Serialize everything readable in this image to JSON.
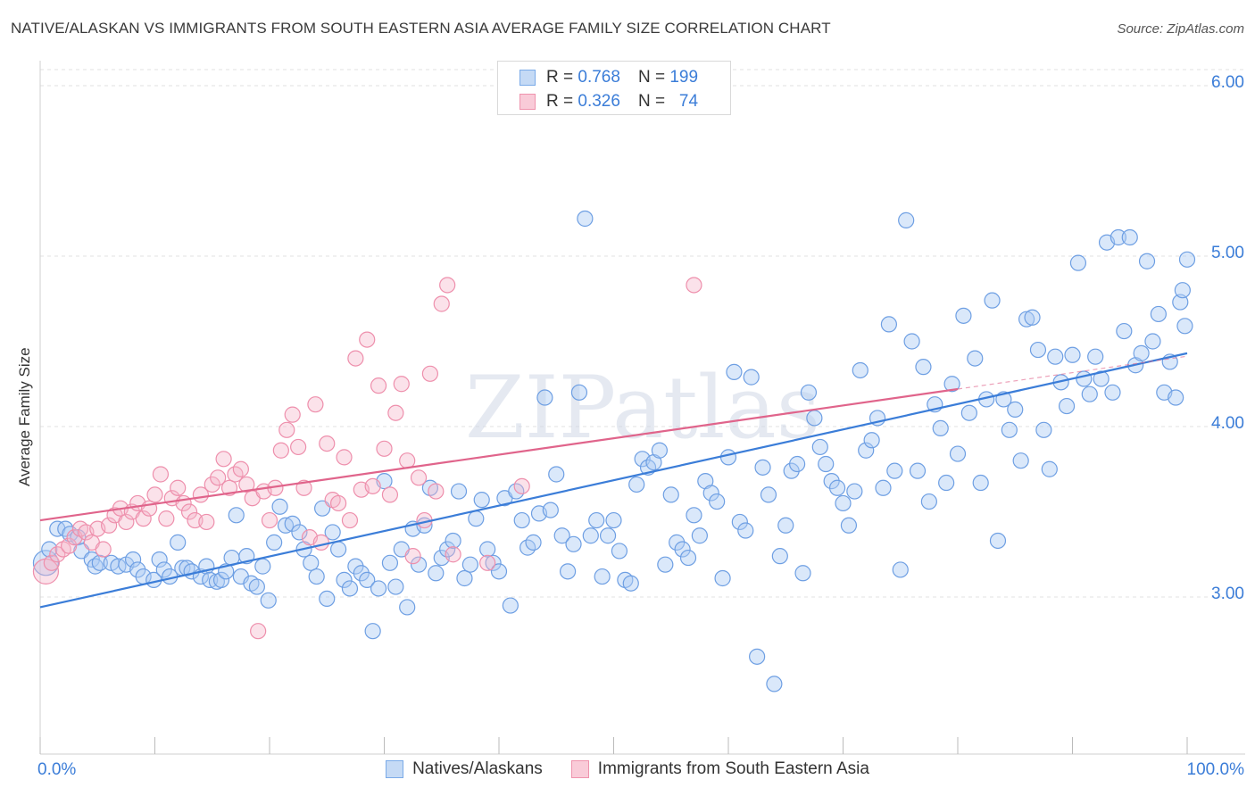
{
  "title": "NATIVE/ALASKAN VS IMMIGRANTS FROM SOUTH EASTERN ASIA AVERAGE FAMILY SIZE CORRELATION CHART",
  "source": "Source: ZipAtlas.com",
  "watermark": "ZIPatlas",
  "legend_stats": [
    {
      "r_label": "R =",
      "r_value": "0.768",
      "n_label": "N =",
      "n_value": "199",
      "color": "#7aaae8",
      "fill": "#c5daf5"
    },
    {
      "r_label": "R =",
      "r_value": "0.326",
      "n_label": "N =",
      "n_value": "74",
      "color": "#ef93ad",
      "fill": "#f9cbd8"
    }
  ],
  "chart_data": {
    "type": "scatter",
    "title": "NATIVE/ALASKAN VS IMMIGRANTS FROM SOUTH EASTERN ASIA AVERAGE FAMILY SIZE CORRELATION CHART",
    "xlabel": "",
    "ylabel": "Average Family Size",
    "xlim": [
      0,
      100
    ],
    "ylim": [
      2.1,
      6.1
    ],
    "x_tick_labels": [
      "0.0%",
      "100.0%"
    ],
    "y_ticks": [
      3.0,
      4.0,
      5.0,
      6.0
    ],
    "y_tick_labels": [
      "3.00",
      "4.00",
      "5.00",
      "6.00"
    ],
    "grid": true,
    "legend_position": "bottom",
    "series": [
      {
        "name": "Natives/Alaskans",
        "color": "#3b7dd8",
        "trend": {
          "x": [
            0,
            100
          ],
          "y": [
            2.94,
            4.43
          ]
        },
        "points": [
          [
            0.5,
            3.2
          ],
          [
            0.8,
            3.28
          ],
          [
            1.5,
            3.4
          ],
          [
            2.2,
            3.4
          ],
          [
            2.6,
            3.37
          ],
          [
            3.3,
            3.35
          ],
          [
            3.6,
            3.27
          ],
          [
            4.5,
            3.22
          ],
          [
            4.8,
            3.18
          ],
          [
            5.2,
            3.2
          ],
          [
            6.2,
            3.2
          ],
          [
            6.8,
            3.18
          ],
          [
            7.5,
            3.19
          ],
          [
            8.1,
            3.22
          ],
          [
            8.5,
            3.16
          ],
          [
            9.0,
            3.12
          ],
          [
            9.9,
            3.1
          ],
          [
            10.4,
            3.22
          ],
          [
            10.8,
            3.16
          ],
          [
            11.3,
            3.12
          ],
          [
            12.0,
            3.32
          ],
          [
            12.4,
            3.17
          ],
          [
            12.8,
            3.17
          ],
          [
            13.2,
            3.15
          ],
          [
            14.0,
            3.12
          ],
          [
            14.5,
            3.18
          ],
          [
            14.8,
            3.1
          ],
          [
            15.4,
            3.09
          ],
          [
            15.8,
            3.1
          ],
          [
            16.2,
            3.15
          ],
          [
            16.7,
            3.23
          ],
          [
            17.1,
            3.48
          ],
          [
            17.5,
            3.12
          ],
          [
            18.0,
            3.24
          ],
          [
            18.4,
            3.08
          ],
          [
            18.9,
            3.06
          ],
          [
            19.4,
            3.18
          ],
          [
            19.9,
            2.98
          ],
          [
            20.4,
            3.32
          ],
          [
            20.9,
            3.53
          ],
          [
            21.4,
            3.42
          ],
          [
            22.0,
            3.43
          ],
          [
            22.6,
            3.38
          ],
          [
            23.0,
            3.28
          ],
          [
            23.6,
            3.2
          ],
          [
            24.1,
            3.12
          ],
          [
            24.6,
            3.52
          ],
          [
            25.0,
            2.99
          ],
          [
            25.5,
            3.38
          ],
          [
            26.0,
            3.28
          ],
          [
            26.5,
            3.1
          ],
          [
            27.0,
            3.05
          ],
          [
            27.5,
            3.18
          ],
          [
            28.0,
            3.14
          ],
          [
            28.5,
            3.1
          ],
          [
            29.0,
            2.8
          ],
          [
            29.5,
            3.05
          ],
          [
            30.0,
            3.68
          ],
          [
            30.5,
            3.2
          ],
          [
            31.0,
            3.06
          ],
          [
            31.5,
            3.28
          ],
          [
            32.0,
            2.94
          ],
          [
            32.5,
            3.4
          ],
          [
            33.0,
            3.19
          ],
          [
            33.5,
            3.42
          ],
          [
            34.0,
            3.64
          ],
          [
            34.5,
            3.14
          ],
          [
            35.0,
            3.23
          ],
          [
            35.5,
            3.28
          ],
          [
            36.0,
            3.33
          ],
          [
            36.5,
            3.62
          ],
          [
            37.0,
            3.11
          ],
          [
            37.5,
            3.19
          ],
          [
            38.0,
            3.46
          ],
          [
            38.5,
            3.57
          ],
          [
            39.0,
            3.28
          ],
          [
            39.5,
            3.2
          ],
          [
            40.0,
            3.15
          ],
          [
            40.5,
            3.58
          ],
          [
            41.0,
            2.95
          ],
          [
            41.5,
            3.62
          ],
          [
            42.0,
            3.45
          ],
          [
            42.5,
            3.29
          ],
          [
            43.0,
            3.32
          ],
          [
            43.5,
            3.49
          ],
          [
            44.0,
            4.17
          ],
          [
            44.5,
            3.51
          ],
          [
            45.0,
            3.72
          ],
          [
            45.5,
            3.36
          ],
          [
            46.0,
            3.15
          ],
          [
            46.5,
            3.31
          ],
          [
            47.0,
            4.2
          ],
          [
            47.5,
            5.22
          ],
          [
            48.0,
            3.36
          ],
          [
            48.5,
            3.45
          ],
          [
            49.0,
            3.12
          ],
          [
            49.5,
            3.36
          ],
          [
            50.0,
            3.45
          ],
          [
            50.5,
            3.27
          ],
          [
            51.0,
            3.1
          ],
          [
            51.5,
            3.08
          ],
          [
            52.0,
            3.66
          ],
          [
            52.5,
            3.81
          ],
          [
            53.0,
            3.76
          ],
          [
            53.5,
            3.79
          ],
          [
            54.0,
            3.86
          ],
          [
            54.5,
            3.19
          ],
          [
            55.0,
            3.6
          ],
          [
            55.5,
            3.32
          ],
          [
            56.0,
            3.28
          ],
          [
            56.5,
            3.23
          ],
          [
            57.0,
            3.48
          ],
          [
            57.5,
            3.36
          ],
          [
            58.0,
            3.68
          ],
          [
            58.5,
            3.61
          ],
          [
            59.0,
            3.56
          ],
          [
            59.5,
            3.11
          ],
          [
            60.0,
            3.82
          ],
          [
            60.5,
            4.32
          ],
          [
            61.0,
            3.44
          ],
          [
            61.5,
            3.39
          ],
          [
            62.0,
            4.29
          ],
          [
            62.5,
            2.65
          ],
          [
            63.0,
            3.76
          ],
          [
            63.5,
            3.6
          ],
          [
            64.0,
            2.49
          ],
          [
            64.5,
            3.24
          ],
          [
            65.0,
            3.42
          ],
          [
            65.5,
            3.74
          ],
          [
            66.0,
            3.78
          ],
          [
            66.5,
            3.14
          ],
          [
            67.0,
            4.2
          ],
          [
            67.5,
            4.05
          ],
          [
            68.0,
            3.88
          ],
          [
            68.5,
            3.78
          ],
          [
            69.0,
            3.68
          ],
          [
            69.5,
            3.64
          ],
          [
            70.0,
            3.55
          ],
          [
            70.5,
            3.42
          ],
          [
            71.0,
            3.62
          ],
          [
            71.5,
            4.33
          ],
          [
            72.0,
            3.86
          ],
          [
            72.5,
            3.92
          ],
          [
            73.0,
            4.05
          ],
          [
            73.5,
            3.64
          ],
          [
            74.0,
            4.6
          ],
          [
            74.5,
            3.74
          ],
          [
            75.0,
            3.16
          ],
          [
            75.5,
            5.21
          ],
          [
            76.0,
            4.5
          ],
          [
            76.5,
            3.74
          ],
          [
            77.0,
            4.35
          ],
          [
            77.5,
            3.56
          ],
          [
            78.0,
            4.13
          ],
          [
            78.5,
            3.99
          ],
          [
            79.0,
            3.67
          ],
          [
            79.5,
            4.25
          ],
          [
            80.0,
            3.84
          ],
          [
            80.5,
            4.65
          ],
          [
            81.0,
            4.08
          ],
          [
            81.5,
            4.4
          ],
          [
            82.0,
            3.67
          ],
          [
            82.5,
            4.16
          ],
          [
            83.0,
            4.74
          ],
          [
            83.5,
            3.33
          ],
          [
            84.0,
            4.16
          ],
          [
            84.5,
            3.98
          ],
          [
            85.0,
            4.1
          ],
          [
            85.5,
            3.8
          ],
          [
            86.0,
            4.63
          ],
          [
            86.5,
            4.64
          ],
          [
            87.0,
            4.45
          ],
          [
            87.5,
            3.98
          ],
          [
            88.0,
            3.75
          ],
          [
            88.5,
            4.41
          ],
          [
            89.0,
            4.26
          ],
          [
            89.5,
            4.12
          ],
          [
            90.0,
            4.42
          ],
          [
            90.5,
            4.96
          ],
          [
            91.0,
            4.28
          ],
          [
            91.5,
            4.19
          ],
          [
            92.0,
            4.41
          ],
          [
            92.5,
            4.28
          ],
          [
            93.0,
            5.08
          ],
          [
            93.5,
            4.2
          ],
          [
            94.0,
            5.11
          ],
          [
            94.5,
            4.56
          ],
          [
            95.0,
            5.11
          ],
          [
            95.5,
            4.36
          ],
          [
            96.0,
            4.43
          ],
          [
            96.5,
            4.97
          ],
          [
            97.0,
            4.5
          ],
          [
            97.5,
            4.66
          ],
          [
            98.0,
            4.2
          ],
          [
            98.5,
            4.38
          ],
          [
            99.0,
            4.17
          ],
          [
            99.4,
            4.73
          ],
          [
            99.6,
            4.8
          ],
          [
            99.8,
            4.59
          ],
          [
            100.0,
            4.98
          ]
        ]
      },
      {
        "name": "Immigrants from South Eastern Asia",
        "color": "#e0648b",
        "trend": {
          "x": [
            0,
            80
          ],
          "y": [
            3.45,
            4.22
          ]
        },
        "points": [
          [
            0.5,
            3.15
          ],
          [
            1.0,
            3.2
          ],
          [
            1.5,
            3.25
          ],
          [
            2.0,
            3.28
          ],
          [
            2.5,
            3.3
          ],
          [
            3.0,
            3.35
          ],
          [
            3.5,
            3.4
          ],
          [
            4.0,
            3.38
          ],
          [
            4.5,
            3.32
          ],
          [
            5.0,
            3.4
          ],
          [
            5.5,
            3.28
          ],
          [
            6.0,
            3.42
          ],
          [
            6.5,
            3.48
          ],
          [
            7.0,
            3.52
          ],
          [
            7.5,
            3.44
          ],
          [
            8.0,
            3.5
          ],
          [
            8.5,
            3.55
          ],
          [
            9.0,
            3.46
          ],
          [
            9.5,
            3.52
          ],
          [
            10.0,
            3.6
          ],
          [
            10.5,
            3.72
          ],
          [
            11.0,
            3.46
          ],
          [
            11.5,
            3.58
          ],
          [
            12.0,
            3.64
          ],
          [
            12.5,
            3.55
          ],
          [
            13.0,
            3.5
          ],
          [
            13.5,
            3.45
          ],
          [
            14.0,
            3.6
          ],
          [
            14.5,
            3.44
          ],
          [
            15.0,
            3.66
          ],
          [
            15.5,
            3.7
          ],
          [
            16.0,
            3.81
          ],
          [
            16.5,
            3.64
          ],
          [
            17.0,
            3.72
          ],
          [
            17.5,
            3.75
          ],
          [
            18.0,
            3.66
          ],
          [
            18.5,
            3.58
          ],
          [
            19.0,
            2.8
          ],
          [
            19.5,
            3.62
          ],
          [
            20.0,
            3.45
          ],
          [
            20.5,
            3.64
          ],
          [
            21.0,
            3.86
          ],
          [
            21.5,
            3.98
          ],
          [
            22.0,
            4.07
          ],
          [
            22.5,
            3.88
          ],
          [
            23.0,
            3.64
          ],
          [
            23.5,
            3.35
          ],
          [
            24.0,
            4.13
          ],
          [
            24.5,
            3.32
          ],
          [
            25.0,
            3.9
          ],
          [
            25.5,
            3.57
          ],
          [
            26.0,
            3.55
          ],
          [
            26.5,
            3.82
          ],
          [
            27.0,
            3.45
          ],
          [
            27.5,
            4.4
          ],
          [
            28.0,
            3.63
          ],
          [
            28.5,
            4.51
          ],
          [
            29.0,
            3.65
          ],
          [
            29.5,
            4.24
          ],
          [
            30.0,
            3.87
          ],
          [
            30.5,
            3.6
          ],
          [
            31.0,
            4.08
          ],
          [
            31.5,
            4.25
          ],
          [
            32.0,
            3.8
          ],
          [
            32.5,
            3.24
          ],
          [
            33.0,
            3.7
          ],
          [
            33.5,
            3.45
          ],
          [
            34.0,
            4.31
          ],
          [
            34.5,
            3.62
          ],
          [
            35.0,
            4.72
          ],
          [
            35.5,
            4.83
          ],
          [
            36.0,
            3.25
          ],
          [
            39.0,
            3.2
          ],
          [
            42.0,
            3.65
          ],
          [
            57.0,
            4.83
          ]
        ]
      }
    ]
  },
  "legend_bottom": [
    {
      "label": "Natives/Alaskans",
      "color": "#7aaae8",
      "fill": "#c5daf5"
    },
    {
      "label": "Immigrants from South Eastern Asia",
      "color": "#ef93ad",
      "fill": "#f9cbd8"
    }
  ]
}
